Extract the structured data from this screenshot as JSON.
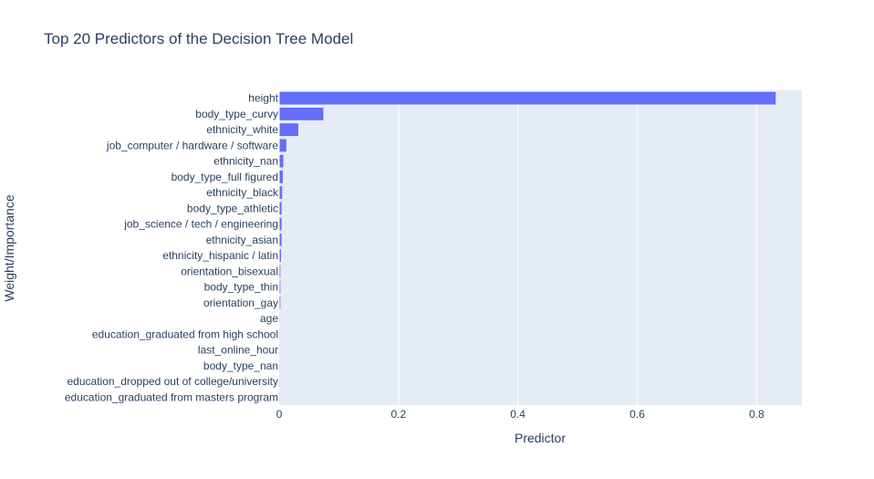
{
  "chart_data": {
    "type": "bar",
    "orientation": "horizontal",
    "title": "Top 20 Predictors of the Decision Tree Model",
    "xlabel": "Predictor",
    "ylabel": "Weight/Importance",
    "xlim": [
      0,
      0.876
    ],
    "xticks": [
      "0",
      "0.2",
      "0.4",
      "0.6",
      "0.8"
    ],
    "xtick_values": [
      0,
      0.2,
      0.4,
      0.6,
      0.8
    ],
    "grid": true,
    "legend": "none",
    "bar_color": "#636efa",
    "plot_background": "#e5ecf6",
    "categories": [
      "height",
      "body_type_curvy",
      "ethnicity_white",
      "job_computer / hardware / software",
      "ethnicity_nan",
      "body_type_full figured",
      "ethnicity_black",
      "body_type_athletic",
      "job_science / tech / engineering",
      "ethnicity_asian",
      "ethnicity_hispanic / latin",
      "orientation_bisexual",
      "body_type_thin",
      "orientation_gay",
      "age",
      "education_graduated from high school",
      "last_online_hour",
      "body_type_nan",
      "education_dropped out of college/university",
      "education_graduated from masters program"
    ],
    "values": [
      0.832,
      0.074,
      0.032,
      0.012,
      0.007,
      0.006,
      0.005,
      0.004,
      0.004,
      0.004,
      0.003,
      0.002,
      0.002,
      0.002,
      0.001,
      0.001,
      0.001,
      0.001,
      0.001,
      0.001
    ]
  }
}
